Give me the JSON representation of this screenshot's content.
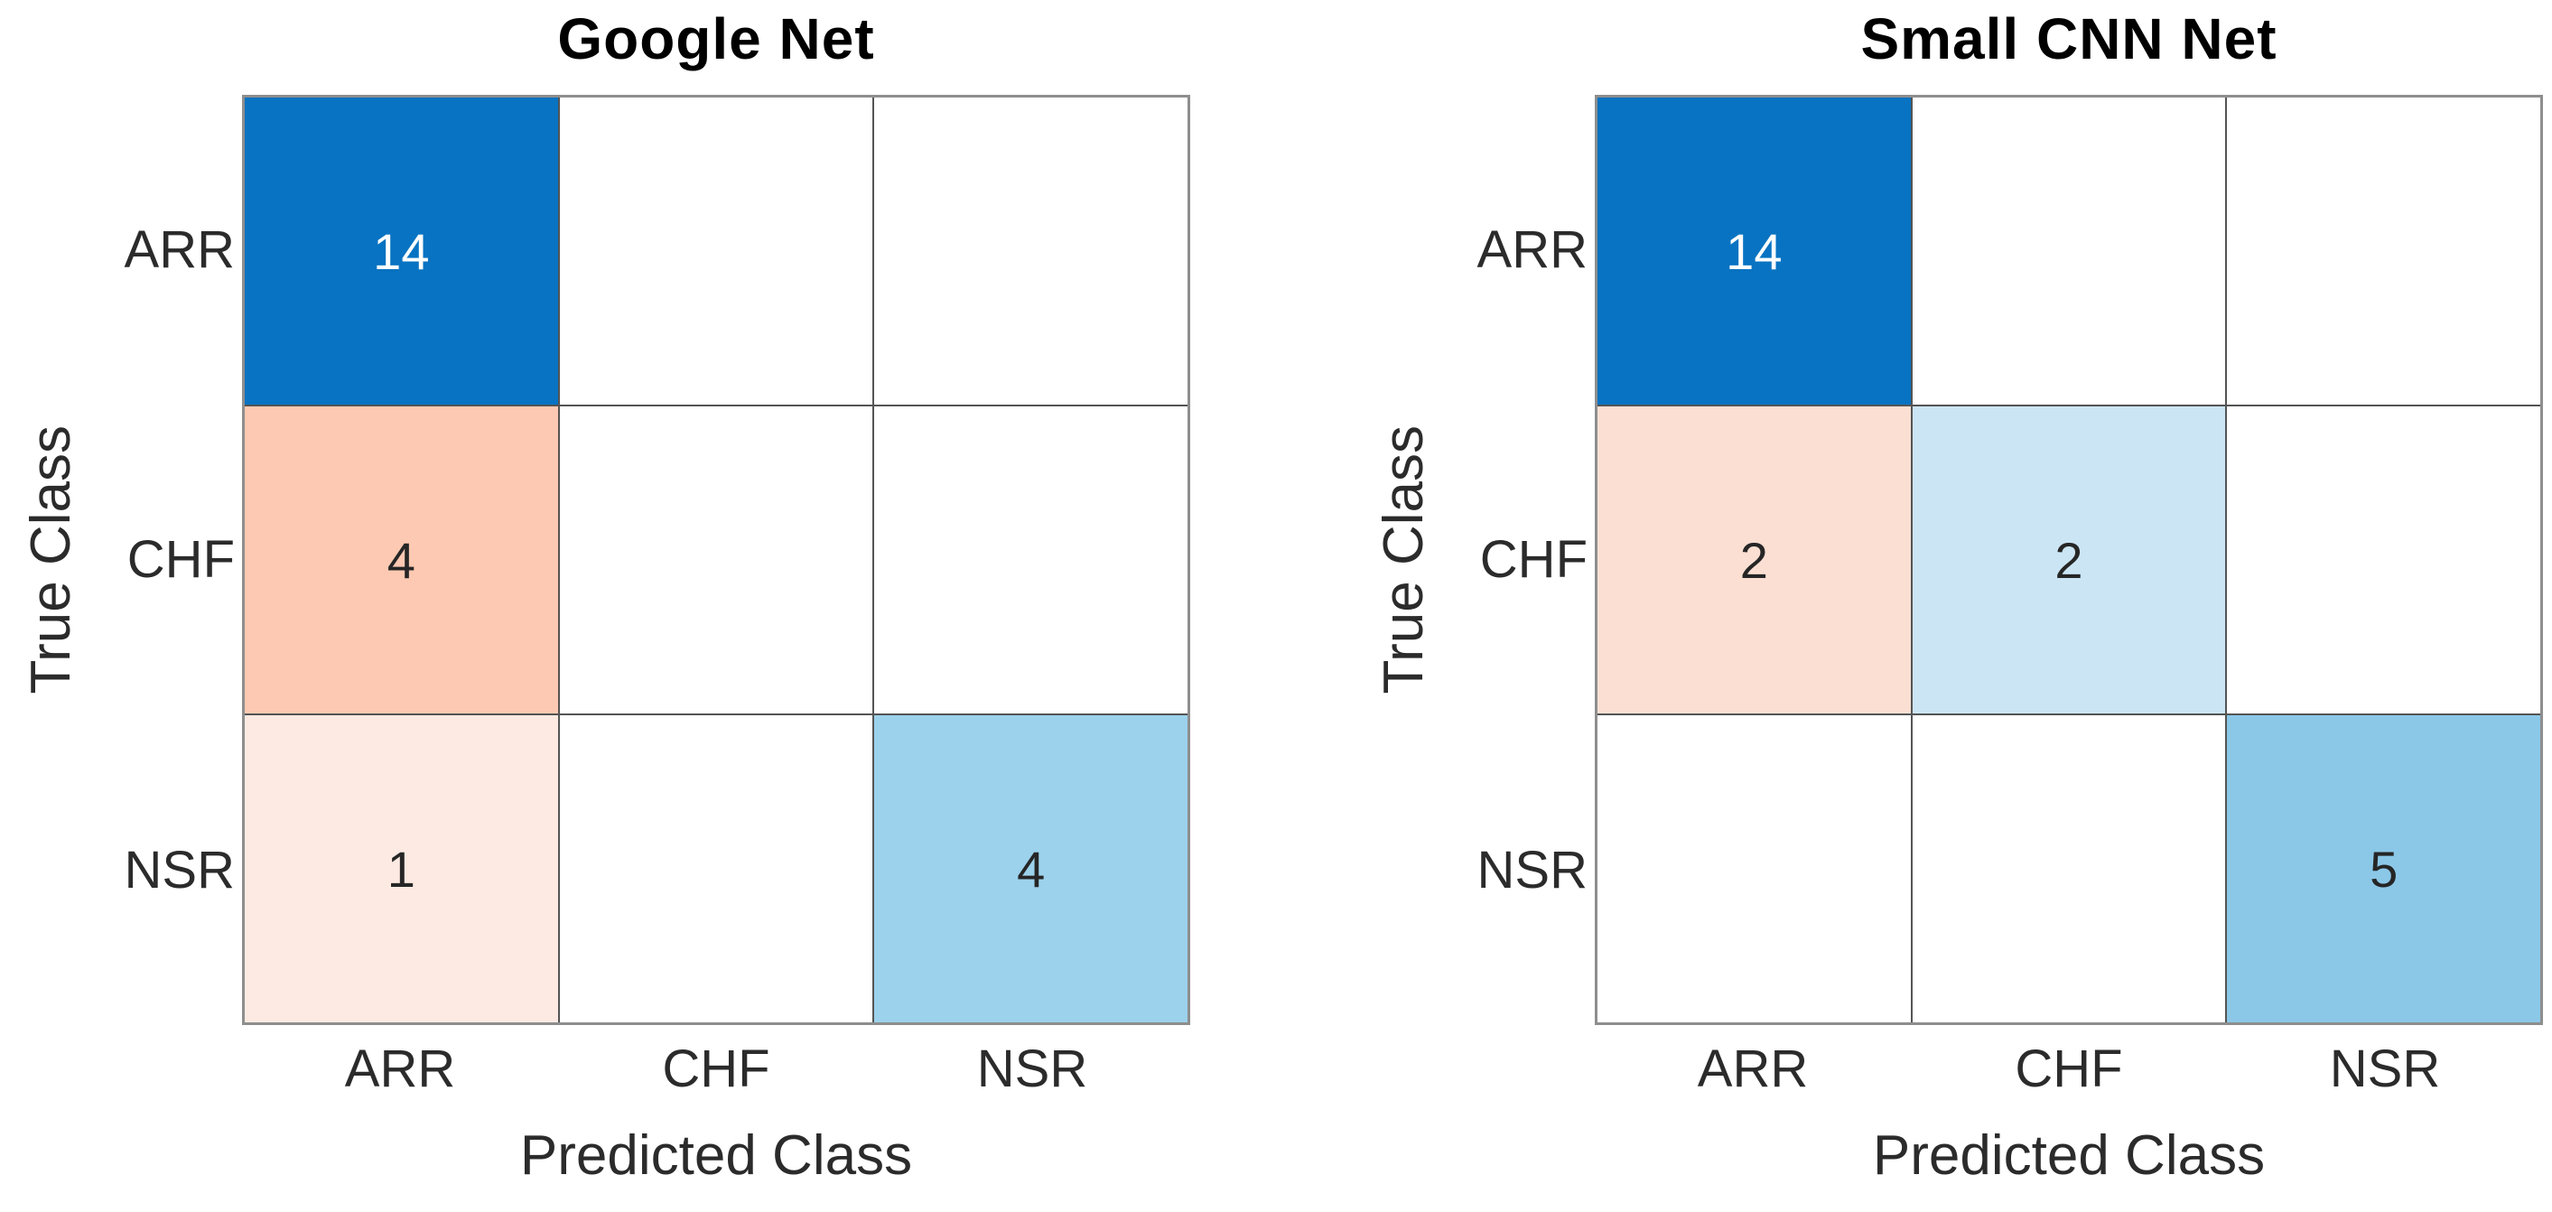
{
  "figure": {
    "background": "#ffffff",
    "grid_line_color": "#545454",
    "outer_border_color": "#8e8e8e",
    "tick_text_color": "#2b2b2b",
    "title_text_color": "#000000"
  },
  "charts": [
    {
      "title": "Google Net",
      "ylabel": "True Class",
      "xlabel": "Predicted Class",
      "row_labels": [
        "ARR",
        "CHF",
        "NSR"
      ],
      "col_labels": [
        "ARR",
        "CHF",
        "NSR"
      ],
      "cells": [
        [
          {
            "label": "14",
            "bg": "#0873C2",
            "fg": "#ffffff"
          },
          {
            "label": "",
            "bg": "#ffffff",
            "fg": "#262626"
          },
          {
            "label": "",
            "bg": "#ffffff",
            "fg": "#262626"
          }
        ],
        [
          {
            "label": "4",
            "bg": "#FDC9B2",
            "fg": "#262626"
          },
          {
            "label": "",
            "bg": "#ffffff",
            "fg": "#262626"
          },
          {
            "label": "",
            "bg": "#ffffff",
            "fg": "#262626"
          }
        ],
        [
          {
            "label": "1",
            "bg": "#FDEAE2",
            "fg": "#262626"
          },
          {
            "label": "",
            "bg": "#ffffff",
            "fg": "#262626"
          },
          {
            "label": "4",
            "bg": "#9CD2EC",
            "fg": "#262626"
          }
        ]
      ]
    },
    {
      "title": "Small CNN Net",
      "ylabel": "True Class",
      "xlabel": "Predicted Class",
      "row_labels": [
        "ARR",
        "CHF",
        "NSR"
      ],
      "col_labels": [
        "ARR",
        "CHF",
        "NSR"
      ],
      "cells": [
        [
          {
            "label": "14",
            "bg": "#0873C2",
            "fg": "#ffffff"
          },
          {
            "label": "",
            "bg": "#ffffff",
            "fg": "#262626"
          },
          {
            "label": "",
            "bg": "#ffffff",
            "fg": "#262626"
          }
        ],
        [
          {
            "label": "2",
            "bg": "#FCDFD3",
            "fg": "#262626"
          },
          {
            "label": "2",
            "bg": "#CBE5F4",
            "fg": "#262626"
          },
          {
            "label": "",
            "bg": "#ffffff",
            "fg": "#262626"
          }
        ],
        [
          {
            "label": "",
            "bg": "#ffffff",
            "fg": "#262626"
          },
          {
            "label": "",
            "bg": "#ffffff",
            "fg": "#262626"
          },
          {
            "label": "5",
            "bg": "#8BC8E8",
            "fg": "#262626"
          }
        ]
      ]
    }
  ],
  "chart_data": [
    {
      "type": "heatmap",
      "subtype": "confusion-matrix",
      "title": "Google Net",
      "xlabel": "Predicted Class",
      "ylabel": "True Class",
      "x_categories": [
        "ARR",
        "CHF",
        "NSR"
      ],
      "y_categories": [
        "ARR",
        "CHF",
        "NSR"
      ],
      "values": [
        [
          14,
          0,
          0
        ],
        [
          4,
          0,
          0
        ],
        [
          1,
          0,
          4
        ]
      ],
      "empty_cells_blank": true,
      "diagonal_color_scale": [
        "#ffffff",
        "#0873C2"
      ],
      "offdiagonal_color_scale": [
        "#ffffff",
        "#FDC9B2"
      ],
      "legend": "none",
      "grid": true
    },
    {
      "type": "heatmap",
      "subtype": "confusion-matrix",
      "title": "Small CNN Net",
      "xlabel": "Predicted Class",
      "ylabel": "True Class",
      "x_categories": [
        "ARR",
        "CHF",
        "NSR"
      ],
      "y_categories": [
        "ARR",
        "CHF",
        "NSR"
      ],
      "values": [
        [
          14,
          0,
          0
        ],
        [
          2,
          2,
          0
        ],
        [
          0,
          0,
          5
        ]
      ],
      "empty_cells_blank": true,
      "diagonal_color_scale": [
        "#ffffff",
        "#0873C2"
      ],
      "offdiagonal_color_scale": [
        "#ffffff",
        "#FDC9B2"
      ],
      "legend": "none",
      "grid": true
    }
  ]
}
